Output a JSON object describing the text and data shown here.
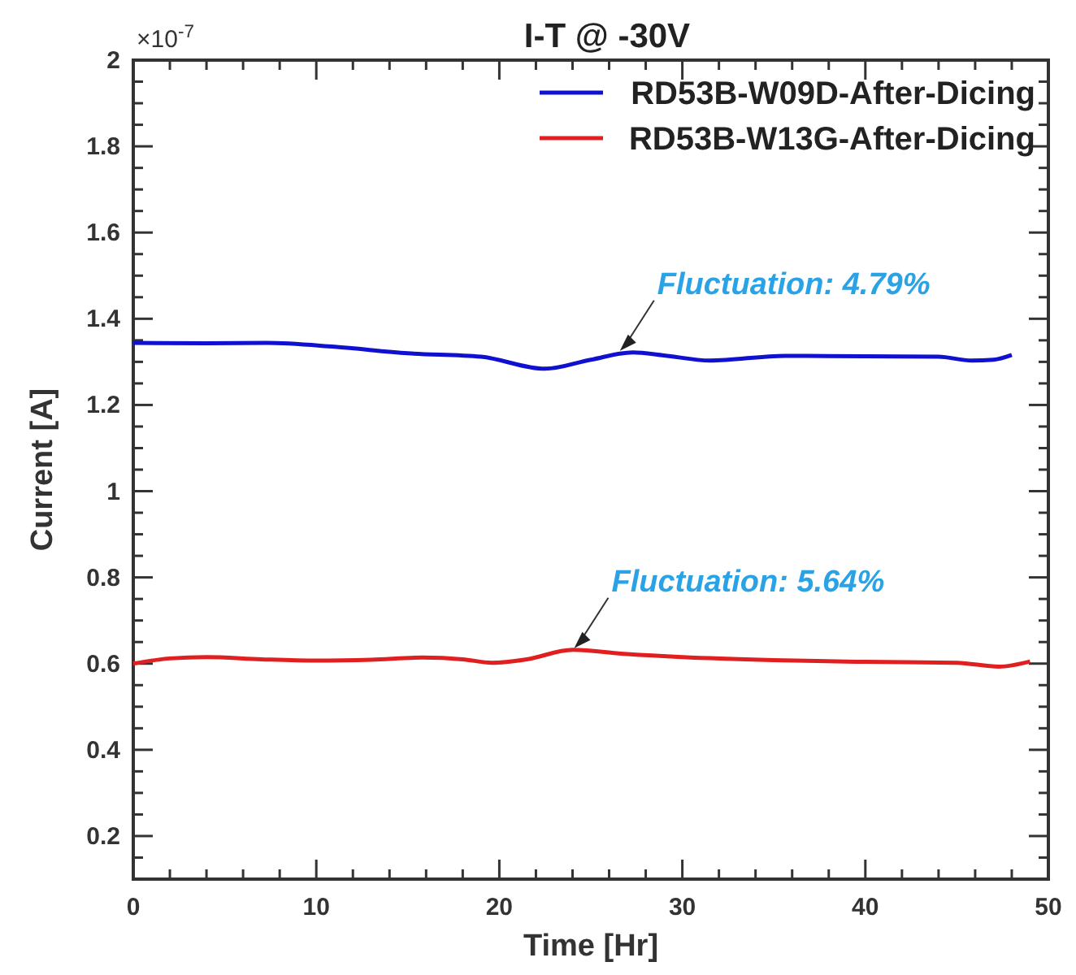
{
  "chart_data": {
    "type": "line",
    "title": "I-T @ -30V",
    "xlabel": "Time [Hr]",
    "ylabel": "Current [A]",
    "xlim": [
      0,
      50
    ],
    "xticks": [
      0,
      10,
      20,
      30,
      40,
      50
    ],
    "ylim": [
      0.1,
      2
    ],
    "yticks": [
      0.2,
      0.4,
      0.6,
      0.8,
      1,
      1.2,
      1.4,
      1.6,
      1.8,
      2
    ],
    "grid": false,
    "legend": "top right",
    "marker": "none",
    "line_style": "solid",
    "annotations": [
      "×10$^{-7}$",
      {
        "text": "Fluctuation: 4.79%",
        "x": 26.5,
        "y": 1.322
      },
      {
        "text": "Fluctuation: 5.64%",
        "x": 24,
        "y": 0.632
      }
    ],
    "series": [
      {
        "name": "RD53B-W09D-After-Dicing",
        "color": "#1010d0",
        "x": [
          0,
          4,
          7.3,
          11,
          15,
          19,
          22.5,
          25,
          27.3,
          29,
          31.5,
          35.6,
          40,
          44,
          45.8,
          47,
          48
        ],
        "values": [
          1.344,
          1.343,
          1.344,
          1.335,
          1.32,
          1.312,
          1.284,
          1.305,
          1.322,
          1.315,
          1.303,
          1.314,
          1.313,
          1.312,
          1.303,
          1.305,
          1.316
        ]
      },
      {
        "name": "RD53B-W13G-After-Dicing",
        "color": "#e02020",
        "x": [
          0,
          2,
          4,
          7,
          10,
          13,
          15.8,
          18,
          19.6,
          21.5,
          24,
          27,
          30,
          35,
          40,
          45,
          47.3,
          49
        ],
        "values": [
          0.6,
          0.612,
          0.615,
          0.61,
          0.607,
          0.609,
          0.614,
          0.61,
          0.602,
          0.61,
          0.632,
          0.622,
          0.615,
          0.608,
          0.604,
          0.602,
          0.593,
          0.605
        ]
      }
    ]
  }
}
